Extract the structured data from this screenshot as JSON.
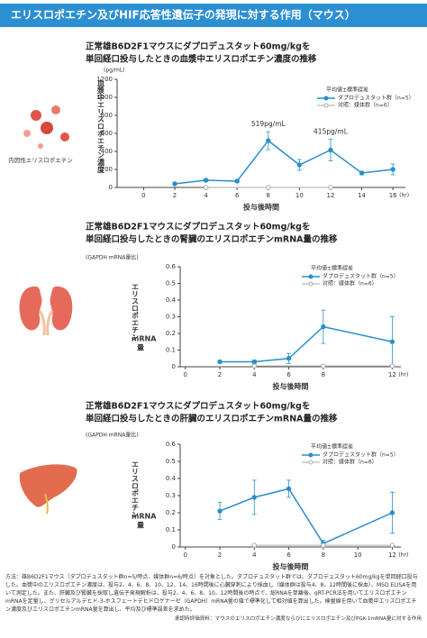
{
  "header": {
    "title": "エリスロポエチン及びHIF応答性遺伝子の発現に対する作用（マウス）"
  },
  "chart_data": [
    {
      "type": "line",
      "title": [
        "正常雄B6D2F1マウスにダプロデュスタット60mg/kgを",
        "単回経口投与したときの血漿中エリスロポエチン濃度の推移"
      ],
      "icon_label": "内因性エリスロポエチン",
      "y_unit": "(pg/mL)",
      "ylabel": "血漿中エリスロポエチン濃度",
      "xlabel": "投与後時間",
      "x_unit": "(hr)",
      "xlim": [
        -1.7,
        16.8
      ],
      "xticks": [
        0,
        2,
        4,
        6,
        8,
        10,
        12,
        14,
        16
      ],
      "ylim": [
        0,
        1200
      ],
      "yticks": [
        0,
        200,
        400,
        600,
        800,
        1000,
        1200
      ],
      "legend_title": "平均値±標準誤差",
      "series": [
        {
          "name": "ダプロデュスタット群（n=5）",
          "color": "#2a8fcc",
          "x": [
            2,
            4,
            6,
            8,
            10,
            12,
            14,
            16
          ],
          "values": [
            40,
            80,
            70,
            519,
            250,
            415,
            160,
            200
          ],
          "errors": [
            10,
            15,
            15,
            100,
            60,
            120,
            20,
            60
          ]
        },
        {
          "name": "対照：媒体群（n=6）",
          "color": "#aaaaaa",
          "x": [
            4,
            8,
            12
          ],
          "values": [
            0,
            0,
            0
          ]
        }
      ],
      "annotations": [
        {
          "text": "519pg/mL",
          "series": 0,
          "point": 3
        },
        {
          "text": "415pg/mL",
          "series": 0,
          "point": 5
        }
      ]
    },
    {
      "type": "line",
      "title": [
        "正常雄B6D2F1マウスにダプロデュスタット60mg/kgを",
        "単回経口投与したときの腎臓のエリスロポエチンmRNA量の推移"
      ],
      "y_unit": "(GAPDH mRNA量比)",
      "ylabel": "エリスロポエチン",
      "ylabel_extra": [
        "mRNA",
        "量"
      ],
      "xlabel": "投与後時間",
      "x_unit": "(hr)",
      "xlim": [
        -0.3,
        12.5
      ],
      "xticks": [
        0,
        2,
        4,
        6,
        8,
        12
      ],
      "ylim": [
        0,
        0.6
      ],
      "yticks": [
        0,
        0.1,
        0.2,
        0.3,
        0.4,
        0.5,
        0.6
      ],
      "legend_title": "平均値±標準誤差",
      "series": [
        {
          "name": "ダプロデュスタット群（n=5）",
          "color": "#2a8fcc",
          "x": [
            2,
            4,
            6,
            8,
            12
          ],
          "values": [
            0.03,
            0.03,
            0.05,
            0.24,
            0.15
          ],
          "errors": [
            0.005,
            0.01,
            0.03,
            0.1,
            0.15
          ]
        },
        {
          "name": "対照：媒体群（n=6）",
          "color": "#aaaaaa",
          "x": [
            4,
            8,
            12
          ],
          "values": [
            0.005,
            0.005,
            0.005
          ]
        }
      ]
    },
    {
      "type": "line",
      "title": [
        "正常雄B6D2F1マウスにダプロデュスタット60mg/kgを",
        "単回経口投与したときの肝臓のエリスロポエチンmRNA量の推移"
      ],
      "y_unit": "(GAPDH mRNA量比)",
      "ylabel": "エリスロポエチン",
      "ylabel_extra": [
        "mRNA",
        "量"
      ],
      "xlabel": "投与後時間",
      "x_unit": "(hr)",
      "xlim": [
        -0.3,
        12.5
      ],
      "xticks": [
        0,
        2,
        4,
        6,
        8,
        10,
        12
      ],
      "ylim": [
        0,
        0.6
      ],
      "yticks": [
        0,
        0.1,
        0.2,
        0.3,
        0.4,
        0.5,
        0.6
      ],
      "legend_title": "平均値±標準誤差",
      "series": [
        {
          "name": "ダプロデュスタット群（n=5）",
          "color": "#2a8fcc",
          "x": [
            2,
            4,
            6,
            8,
            12
          ],
          "values": [
            0.21,
            0.29,
            0.34,
            0.02,
            0.2
          ],
          "errors": [
            0.05,
            0.1,
            0.05,
            0.02,
            0.12
          ]
        },
        {
          "name": "対照：媒体群（n=6）",
          "color": "#aaaaaa",
          "x": [
            4,
            8,
            12
          ],
          "values": [
            0.01,
            0.01,
            0.01
          ]
        }
      ]
    }
  ],
  "footer": {
    "method": "方法：雄B6D2F1マウス（ダプロデュスタット群n=5/時点、媒体群n=6/時点）を対象とした。ダプロデュスタット群では、ダプロデュスタット60mg/kgを単回経口投与した。血漿中のエリスロポエチン濃度は、投与2、4、6、8、10、12、14、16時間後に心臓穿刺により採血し（媒体群は投与4、8、12時間後に採血）、MSD ELISAを用いて測定した。また、肝臓及び腎臓を採取し遺伝子発現解析は、投与2、4、6、8、10、12時間後の時点で、総RNAを単離後、qRT-PCR法を用いてエリスロポエチンmRNAを定量し、グリセルアルデヒド-3-ホスフェートデヒドロゲナーゼ（GAPDH）mRNA量の値で標準化して相対値を算出した。検量線を用いて血漿中エリスロポエチン濃度及びエリスロポエチンmRNA量を算出し、平均及び標準誤差を求めた。",
    "source": "承認時評価資料：マウスのエリスロポエチン濃度ならびにエリスロポエチン及びPGK-1mRNA量に対する作用"
  }
}
